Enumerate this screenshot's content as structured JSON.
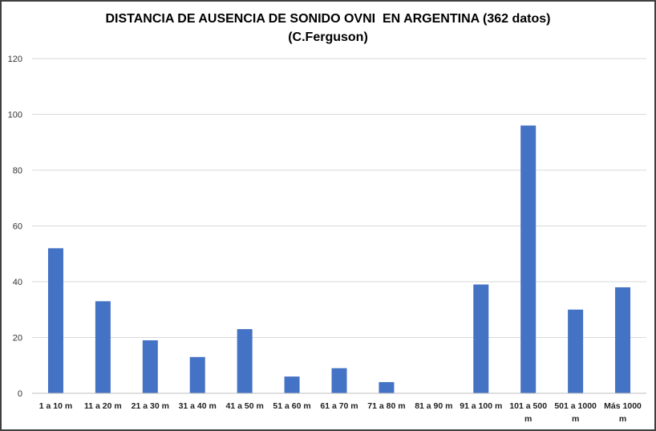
{
  "chart_data": {
    "type": "bar",
    "title": "DISTANCIA DE AUSENCIA DE SONIDO OVNI  EN ARGENTINA (362 datos)",
    "subtitle": "(C.Ferguson)",
    "xlabel": "",
    "ylabel": "",
    "categories": [
      [
        "1 a 10 m"
      ],
      [
        "11 a 20 m"
      ],
      [
        "21 a 30 m"
      ],
      [
        "31 a 40 m"
      ],
      [
        "41 a 50 m"
      ],
      [
        "51 a 60 m"
      ],
      [
        "61 a 70 m"
      ],
      [
        "71 a 80 m"
      ],
      [
        "81 a 90 m"
      ],
      [
        "91 a 100 m"
      ],
      [
        "101 a 500",
        "m"
      ],
      [
        "501 a 1000",
        "m"
      ],
      [
        "Más 1000",
        "m"
      ]
    ],
    "values": [
      52,
      33,
      19,
      13,
      23,
      6,
      9,
      4,
      0,
      39,
      96,
      30,
      38
    ],
    "ylim": [
      0,
      120
    ],
    "yticks": [
      0,
      20,
      40,
      60,
      80,
      100,
      120
    ],
    "grid": true,
    "legend": "none",
    "colors": {
      "bar": "#4472c4",
      "grid": "#d9d9d9",
      "axis": "#bfbfbf"
    }
  }
}
